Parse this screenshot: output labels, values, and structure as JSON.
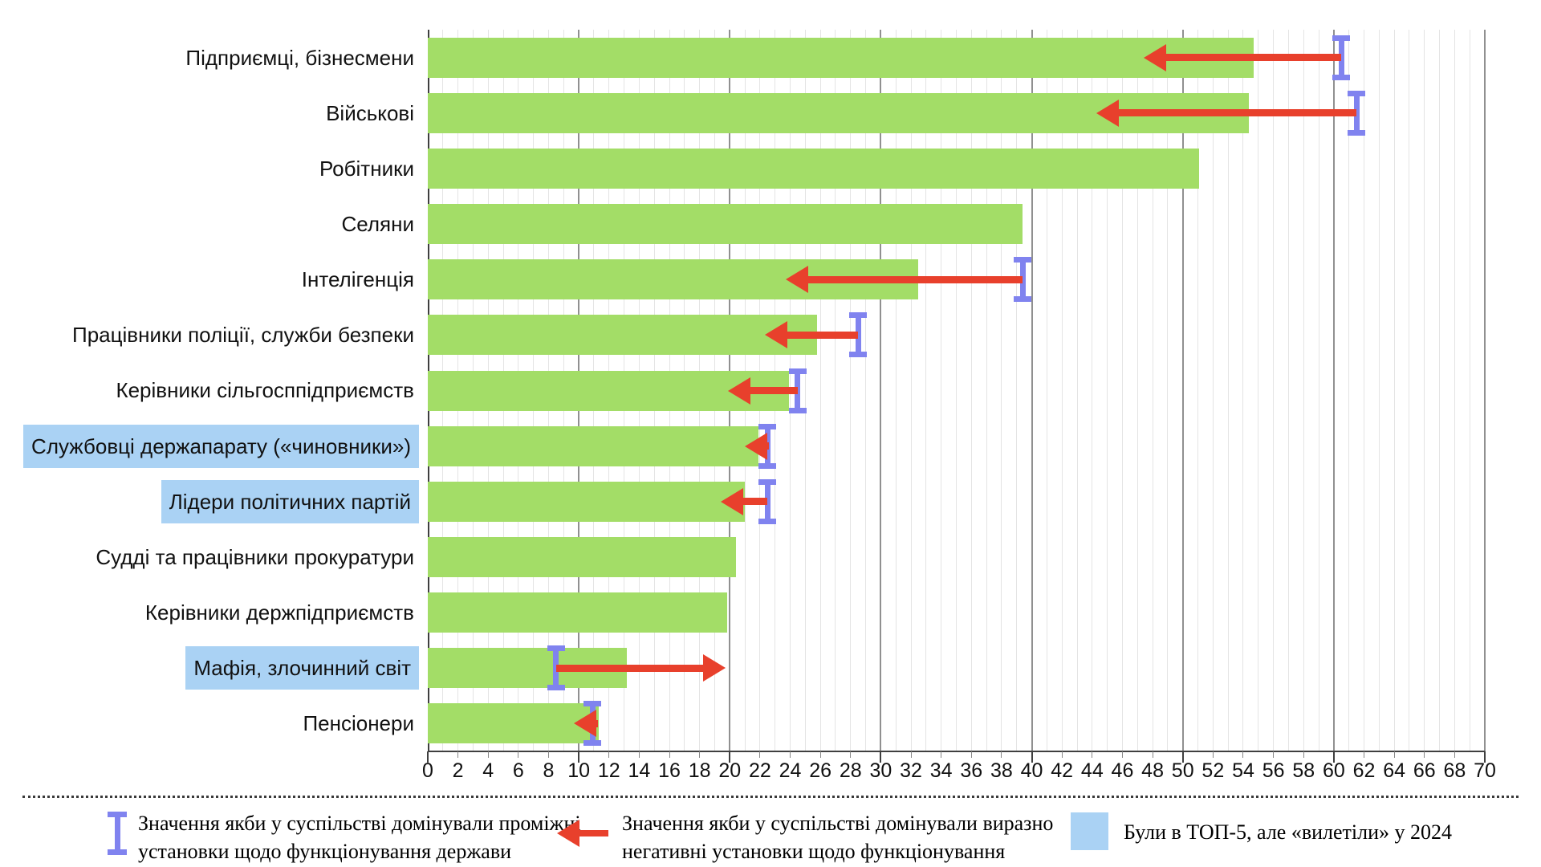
{
  "legend": {
    "whisker": {
      "label": "Значення якби у суспільстві домінували проміжні установки щодо функціонування держави"
    },
    "arrow": {
      "label": "Значення якби у суспільстві домінували виразно негативні установки щодо функціонування держави"
    },
    "highlight": {
      "label": "Були в ТОП-5, але «вилетіли» у 2024"
    }
  },
  "chart_data": {
    "type": "bar",
    "orientation": "horizontal",
    "title": "",
    "xlabel": "",
    "ylabel": "",
    "xlim": [
      0,
      70
    ],
    "x_tick_step": 2,
    "x_major_step": 10,
    "grid": "vertical minor every 1, major every 10",
    "legend_position": "bottom",
    "categories": [
      "Підприємці, бізнесмени",
      "Військові",
      "Робітники",
      "Селяни",
      "Інтелігенція",
      "Працівники поліції, служби безпеки",
      "Керівники сільгосппідприємств",
      "Службовці держапарату («чиновники»)",
      "Лідери політичних партій",
      "Судді та працівники прокуратури",
      "Керівники держпідприємств",
      "Мафія, злочинний світ",
      "Пенсіонери"
    ],
    "values": [
      54.7,
      54.4,
      51.1,
      39.4,
      32.5,
      25.8,
      23.9,
      21.9,
      21.0,
      20.4,
      19.8,
      13.2,
      11.3
    ],
    "whisker_values": [
      60.5,
      61.5,
      null,
      null,
      39.4,
      28.5,
      24.5,
      22.5,
      22.5,
      null,
      null,
      8.5,
      10.9
    ],
    "arrow_tip_values": [
      47.4,
      44.3,
      null,
      null,
      23.7,
      22.3,
      19.9,
      21.0,
      19.4,
      null,
      null,
      19.7,
      9.7
    ],
    "highlighted_flags": [
      false,
      false,
      false,
      false,
      false,
      false,
      false,
      true,
      true,
      false,
      false,
      true,
      false
    ],
    "highlighted_categories": [
      "Службовці держапарату («чиновники»)",
      "Лідери політичних партій",
      "Мафія, злочинний світ"
    ],
    "colors": {
      "bar": "#a3dd67",
      "category_highlight": "#aad2f4",
      "whisker": "#8083ef",
      "arrow": "#e8402c"
    }
  }
}
